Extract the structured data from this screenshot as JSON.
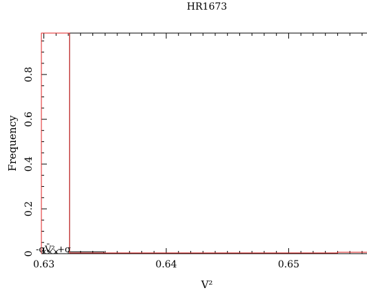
{
  "chart_data": {
    "type": "histogram",
    "title": "HR1673",
    "xlabel": "V²",
    "ylabel": "Frequency",
    "xlim": [
      0.6298,
      0.6564
    ],
    "ylim": [
      0,
      0.985
    ],
    "x_ticks": [
      {
        "value": 0.63,
        "label": "0.63"
      },
      {
        "value": 0.64,
        "label": "0.64"
      },
      {
        "value": 0.65,
        "label": "0.65"
      }
    ],
    "y_ticks": [
      {
        "value": 0,
        "label": "0"
      },
      {
        "value": 0.2,
        "label": "0.2"
      },
      {
        "value": 0.4,
        "label": "0.4"
      },
      {
        "value": 0.6,
        "label": "0.6"
      },
      {
        "value": 0.8,
        "label": "0.8"
      }
    ],
    "series": [
      {
        "color": "#000000",
        "bins": [
          {
            "x0": 0.6298,
            "x1": 0.6321,
            "y": 0.985
          },
          {
            "x0": 0.6321,
            "x1": 0.6349,
            "y": 0.008
          },
          {
            "x0": 0.6349,
            "x1": 0.6564,
            "y": 0.0
          }
        ]
      },
      {
        "color": "#e02020",
        "bins": [
          {
            "x0": 0.6298,
            "x1": 0.6321,
            "y": 0.985
          },
          {
            "x0": 0.6321,
            "x1": 0.654,
            "y": 0.003
          },
          {
            "x0": 0.654,
            "x1": 0.6564,
            "y": 0.006
          }
        ]
      }
    ],
    "annotations": {
      "markers": [
        {
          "x": 0.63,
          "label": "-σ"
        },
        {
          "x": 0.6305,
          "label": "V̄²"
        },
        {
          "x": 0.631,
          "label": "+σ"
        }
      ],
      "marker_color": "#d020d0",
      "label_text": [
        "-σ",
        "V̄²",
        "+σ"
      ]
    }
  }
}
